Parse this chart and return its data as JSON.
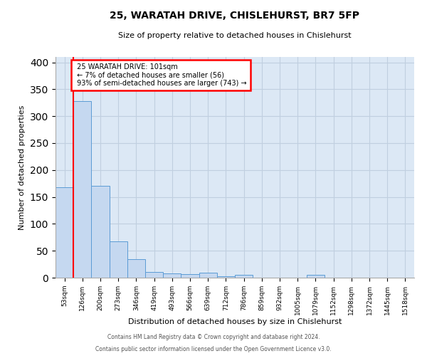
{
  "title1": "25, WARATAH DRIVE, CHISLEHURST, BR7 5FP",
  "title2": "Size of property relative to detached houses in Chislehurst",
  "xlabel": "Distribution of detached houses by size in Chislehurst",
  "ylabel": "Number of detached properties",
  "categories": [
    "53sqm",
    "126sqm",
    "200sqm",
    "273sqm",
    "346sqm",
    "419sqm",
    "493sqm",
    "566sqm",
    "639sqm",
    "712sqm",
    "786sqm",
    "859sqm",
    "932sqm",
    "1005sqm",
    "1079sqm",
    "1152sqm",
    "1298sqm",
    "1372sqm",
    "1445sqm",
    "1518sqm"
  ],
  "values": [
    168,
    328,
    170,
    67,
    35,
    10,
    8,
    7,
    9,
    3,
    5,
    0,
    0,
    0,
    5,
    0,
    0,
    0,
    0,
    0
  ],
  "bar_color": "#c5d8f0",
  "bar_edge_color": "#5b9bd5",
  "annotation_text1": "25 WARATAH DRIVE: 101sqm",
  "annotation_text2": "← 7% of detached houses are smaller (56)",
  "annotation_text3": "93% of semi-detached houses are larger (743) →",
  "annotation_box_color": "white",
  "annotation_box_edge_color": "red",
  "ylim": [
    0,
    410
  ],
  "yticks": [
    0,
    50,
    100,
    150,
    200,
    250,
    300,
    350,
    400
  ],
  "grid_color": "#c0cfe0",
  "bg_color": "#dce8f5",
  "footer1": "Contains HM Land Registry data © Crown copyright and database right 2024.",
  "footer2": "Contains public sector information licensed under the Open Government Licence v3.0."
}
